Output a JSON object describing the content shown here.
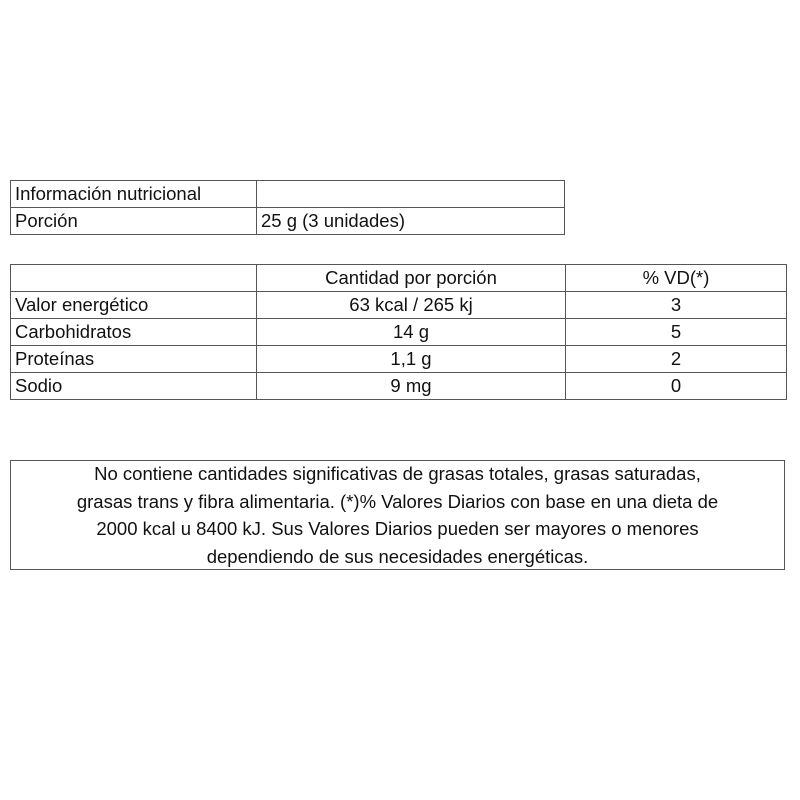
{
  "info_table": {
    "title": "Información nutricional",
    "title_value": "",
    "portion_label": "Porción",
    "portion_value": "25 g (3 unidades)"
  },
  "nutrient_table": {
    "headers": [
      "",
      "Cantidad por porción",
      "% VD(*)"
    ],
    "rows": [
      {
        "name": "Valor energético",
        "amount": "63 kcal / 265 kj",
        "vd": "3"
      },
      {
        "name": "Carbohidratos",
        "amount": "14 g",
        "vd": "5"
      },
      {
        "name": "Proteínas",
        "amount": "1,1 g",
        "vd": "2"
      },
      {
        "name": "Sodio",
        "amount": "9 mg",
        "vd": "0"
      }
    ]
  },
  "note": {
    "lines": [
      "No contiene cantidades significativas de grasas totales, grasas saturadas,",
      "grasas trans y fibra alimentaria. (*)% Valores Diarios con base en una dieta de",
      "2000 kcal u 8400 kJ. Sus Valores Diarios pueden ser mayores o menores",
      "dependiendo de sus necesidades energéticas."
    ]
  }
}
